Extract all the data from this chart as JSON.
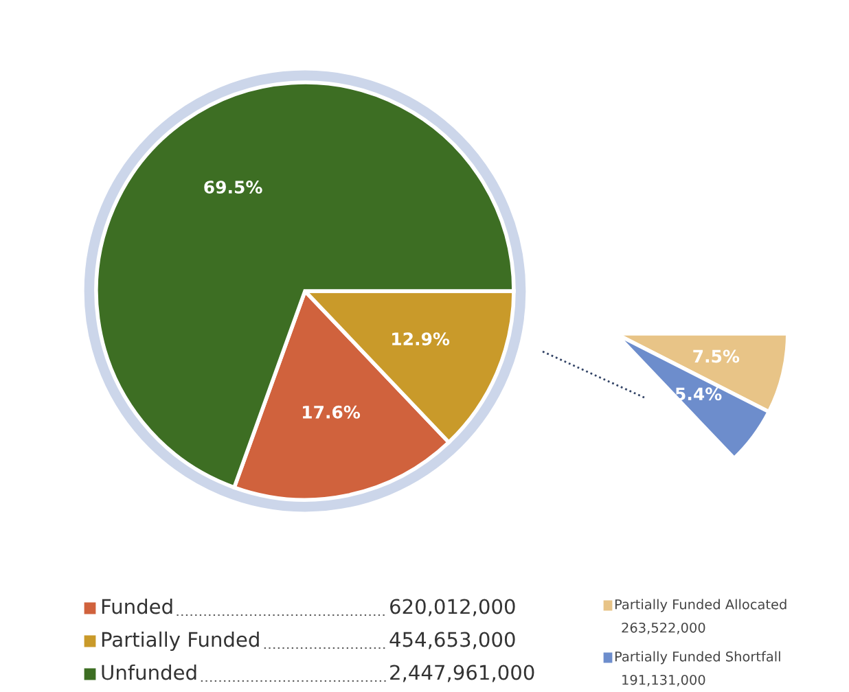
{
  "chart_data": [
    {
      "type": "pie",
      "categories": [
        "Funded",
        "Partially Funded",
        "Unfunded"
      ],
      "values": [
        17.6,
        12.9,
        69.5
      ],
      "colors": [
        "#d0623d",
        "#c99a2a",
        "#3d6e23"
      ],
      "value_labels": [
        "17.6%",
        "12.9%",
        "69.5%"
      ],
      "annotations": [
        "620,012,000",
        "454,653,000",
        "2,447,961,000"
      ],
      "legend": "bottom"
    },
    {
      "type": "pie",
      "categories": [
        "Partially Funded Allocated",
        "Partially Funded Shortfall"
      ],
      "values": [
        7.5,
        5.4
      ],
      "colors": [
        "#e8c487",
        "#6d8dcc"
      ],
      "value_labels": [
        "7.5%",
        "5.4%"
      ],
      "annotations": [
        "263,522,000",
        "191,131,000"
      ],
      "legend": "bottom"
    }
  ]
}
